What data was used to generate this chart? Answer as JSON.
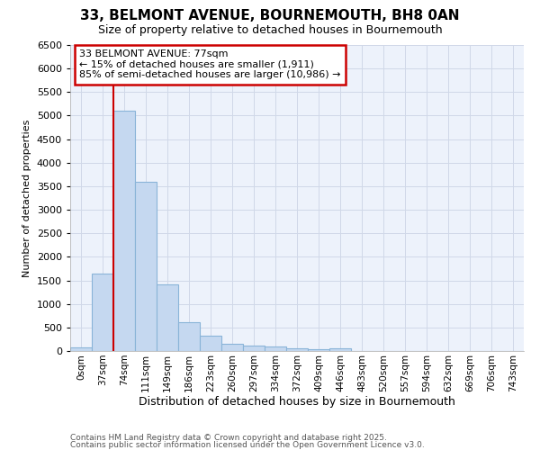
{
  "title": "33, BELMONT AVENUE, BOURNEMOUTH, BH8 0AN",
  "subtitle": "Size of property relative to detached houses in Bournemouth",
  "xlabel": "Distribution of detached houses by size in Bournemouth",
  "ylabel": "Number of detached properties",
  "categories": [
    "0sqm",
    "37sqm",
    "74sqm",
    "111sqm",
    "149sqm",
    "186sqm",
    "223sqm",
    "260sqm",
    "297sqm",
    "334sqm",
    "372sqm",
    "409sqm",
    "446sqm",
    "483sqm",
    "520sqm",
    "557sqm",
    "594sqm",
    "632sqm",
    "669sqm",
    "706sqm",
    "743sqm"
  ],
  "values": [
    75,
    1650,
    5100,
    3600,
    1420,
    620,
    320,
    160,
    115,
    95,
    55,
    30,
    55,
    5,
    5,
    0,
    0,
    0,
    0,
    0,
    0
  ],
  "bar_color": "#c5d8f0",
  "bar_edge_color": "#8ab4d8",
  "vline_color": "#cc0000",
  "ylim": [
    0,
    6500
  ],
  "yticks": [
    0,
    500,
    1000,
    1500,
    2000,
    2500,
    3000,
    3500,
    4000,
    4500,
    5000,
    5500,
    6000,
    6500
  ],
  "annotation_title": "33 BELMONT AVENUE: 77sqm",
  "annotation_line1": "← 15% of detached houses are smaller (1,911)",
  "annotation_line2": "85% of semi-detached houses are larger (10,986) →",
  "annotation_box_color": "#cc0000",
  "grid_color": "#d0d8e8",
  "background_color": "#edf2fb",
  "footer1": "Contains HM Land Registry data © Crown copyright and database right 2025.",
  "footer2": "Contains public sector information licensed under the Open Government Licence v3.0."
}
